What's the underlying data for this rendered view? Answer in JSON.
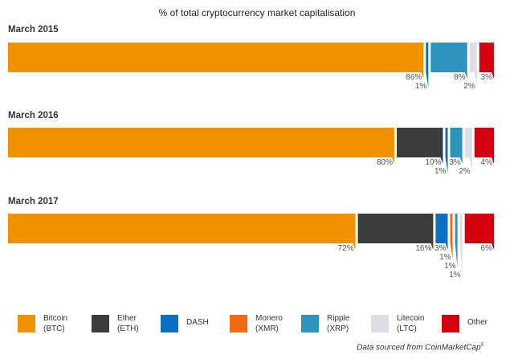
{
  "chart_data": {
    "type": "bar",
    "stacked": true,
    "orientation": "horizontal",
    "title": "% of total cryptocurrency market capitalisation",
    "unit": "%",
    "categories": [
      "March 2015",
      "March 2016",
      "March 2017"
    ],
    "series": [
      {
        "key": "btc",
        "name": "Bitcoin\n(BTC)",
        "color": "#f39200",
        "values": [
          86,
          80,
          72
        ],
        "labels": [
          "86%",
          "80%",
          "72%"
        ]
      },
      {
        "key": "eth",
        "name": "Ether\n(ETH)",
        "color": "#3c3c3c",
        "values": [
          0,
          10,
          16
        ],
        "labels": [
          "",
          "10%",
          "16%"
        ]
      },
      {
        "key": "dash",
        "name": "DASH",
        "color": "#0b6fc1",
        "values": [
          1,
          1,
          3
        ],
        "labels": [
          "1%",
          "1%",
          "3%"
        ]
      },
      {
        "key": "xmr",
        "name": "Monero\n(XMR)",
        "color": "#f06a12",
        "values": [
          0,
          0,
          1
        ],
        "labels": [
          "",
          "",
          "1%"
        ]
      },
      {
        "key": "xrp",
        "name": "Ripple\n(XRP)",
        "color": "#2c94bd",
        "values": [
          8,
          3,
          1
        ],
        "labels": [
          "8%",
          "3%",
          "1%"
        ]
      },
      {
        "key": "ltc",
        "name": "Litecoin\n(LTC)",
        "color": "#dedee6",
        "values": [
          2,
          2,
          1
        ],
        "labels": [
          "2%",
          "2%",
          "1%"
        ]
      },
      {
        "key": "other",
        "name": "Other",
        "color": "#d5000f",
        "values": [
          3,
          4,
          6
        ],
        "labels": [
          "3%",
          "4%",
          "6%"
        ]
      }
    ],
    "legend_position": "bottom",
    "grid": false
  },
  "source_note": "Data sourced from CoinMarketCap",
  "source_note_ref": "5"
}
